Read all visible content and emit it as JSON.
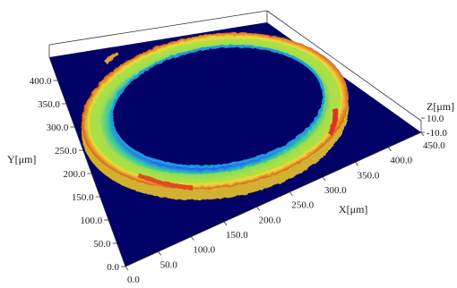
{
  "chart_data": {
    "type": "surface3d",
    "x_axis": {
      "label": "X[μm]",
      "ticks": [
        "0.0",
        "50.0",
        "100.0",
        "150.0",
        "200.0",
        "250.0",
        "300.0",
        "350.0",
        "400.0",
        "450.0"
      ],
      "range": [
        0,
        450
      ]
    },
    "y_axis": {
      "label": "Y[μm]",
      "ticks": [
        "0.0",
        "50.0",
        "100.0",
        "150.0",
        "200.0",
        "250.0",
        "300.0",
        "350.0",
        "400.0"
      ],
      "range": [
        0,
        450
      ]
    },
    "z_axis": {
      "label": "Z[μm]",
      "ticks": [
        "10.0",
        "-10.0"
      ],
      "range": [
        -10,
        15
      ]
    },
    "surface": {
      "shape": "annular ring",
      "center": [
        225,
        225
      ],
      "inner_radius": 155,
      "outer_radius": 200,
      "ring_height": 12,
      "base_height": -10
    },
    "colors": {
      "base": "#000066",
      "ring_low": "#2060ff",
      "ring_mid": "#30c8a0",
      "ring_high": "#f0e030",
      "ring_peak": "#e03020"
    }
  }
}
